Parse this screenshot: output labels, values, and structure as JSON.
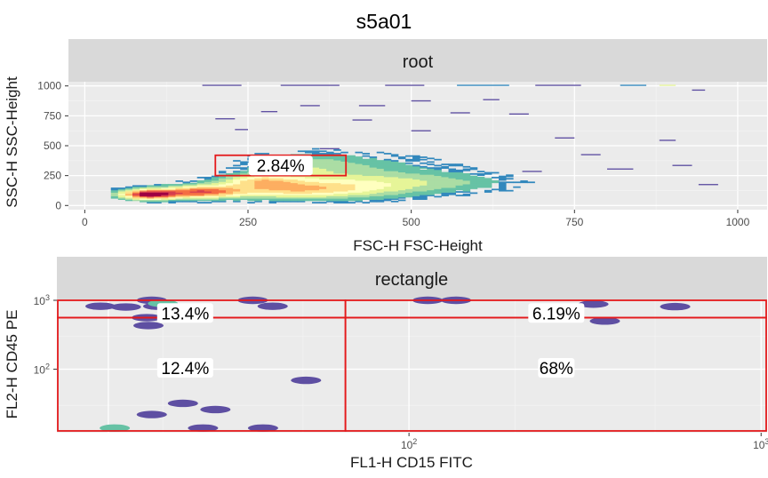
{
  "title": "s5a01",
  "chart_data": [
    {
      "type": "heatmap",
      "strip_label": "root",
      "xlabel": "FSC-H FSC-Height",
      "ylabel": "SSC-H SSC-Height",
      "xlim": [
        -25,
        1045
      ],
      "ylim": [
        -35,
        1035
      ],
      "xticks": [
        0,
        250,
        500,
        750,
        1000
      ],
      "yticks": [
        0,
        250,
        500,
        750,
        1000
      ],
      "grid": true,
      "palette": [
        "#9e0142",
        "#d53e4f",
        "#f46d43",
        "#fdae61",
        "#fee08b",
        "#ffffbf",
        "#e6f598",
        "#abdda4",
        "#66c2a5",
        "#3288bd",
        "#5e4fa2"
      ],
      "gate": {
        "label": "2.84%",
        "x": [
          200,
          400
        ],
        "y": [
          250,
          420
        ]
      },
      "bins": [
        [
          -8,
          -40,
          90,
          95,
          30
        ],
        [
          0,
          -40,
          90,
          95,
          30
        ],
        [
          0,
          -40,
          90,
          95,
          30
        ],
        [
          0,
          -40,
          95,
          100,
          30
        ],
        [
          0,
          -30,
          10,
          20,
          30
        ],
        [
          0,
          -30,
          30,
          40,
          30
        ],
        [
          0,
          -25,
          40,
          50,
          30
        ],
        [
          0,
          -10,
          45,
          55,
          30
        ],
        [
          0,
          -10,
          50,
          60,
          30
        ],
        [
          0,
          0,
          20,
          30,
          30
        ],
        [
          0,
          10,
          30,
          40,
          30
        ],
        [
          0,
          30,
          25,
          35,
          30
        ],
        [
          0,
          60,
          30,
          40,
          30
        ],
        [
          0,
          60,
          45,
          55,
          30
        ],
        [
          0,
          75,
          35,
          45,
          30
        ],
        [
          0,
          80,
          40,
          50,
          30
        ],
        [
          0,
          95,
          35,
          45,
          30
        ],
        [
          0,
          90,
          15,
          30,
          30
        ]
      ]
    },
    {
      "type": "scatter",
      "strip_label": "rectangle",
      "xlabel": "FL1-H CD15 FITC",
      "ylabel": "FL2-H CD45 PE",
      "x_scale": "log",
      "y_scale": "log",
      "xlim": [
        10,
        1040
      ],
      "ylim": [
        12,
        1030
      ],
      "x_tick_labels": [
        "10^2",
        "10^3"
      ],
      "y_tick_labels": [
        "10^2",
        "10^3"
      ],
      "grid": true,
      "quadrants": [
        {
          "label": "13.4%"
        },
        {
          "label": "6.19%"
        },
        {
          "label": "12.4%"
        },
        {
          "label": "68%"
        }
      ],
      "points": [
        [
          13.3,
          820,
          "#5e4fa2"
        ],
        [
          15.7,
          800,
          "#5e4fa2"
        ],
        [
          19.4,
          820,
          "#5e4fa2"
        ],
        [
          18.6,
          1000,
          "#5e4fa2"
        ],
        [
          20.0,
          900,
          "#66c2a5"
        ],
        [
          18.0,
          560,
          "#5e4fa2"
        ],
        [
          18.2,
          430,
          "#5e4fa2"
        ],
        [
          36.0,
          1000,
          "#5e4fa2"
        ],
        [
          41.0,
          820,
          "#5e4fa2"
        ],
        [
          51.0,
          69,
          "#5e4fa2"
        ],
        [
          22.8,
          32,
          "#5e4fa2"
        ],
        [
          18.6,
          22,
          "#5e4fa2"
        ],
        [
          28.2,
          26,
          "#5e4fa2"
        ],
        [
          26.0,
          14,
          "#5e4fa2"
        ],
        [
          38.5,
          14,
          "#5e4fa2"
        ],
        [
          14.6,
          14,
          "#66c2a5"
        ],
        [
          113,
          1000,
          "#5e4fa2"
        ],
        [
          136,
          1000,
          "#5e4fa2"
        ],
        [
          334,
          880,
          "#5e4fa2"
        ],
        [
          570,
          810,
          "#5e4fa2"
        ],
        [
          360,
          500,
          "#5e4fa2"
        ]
      ]
    }
  ]
}
